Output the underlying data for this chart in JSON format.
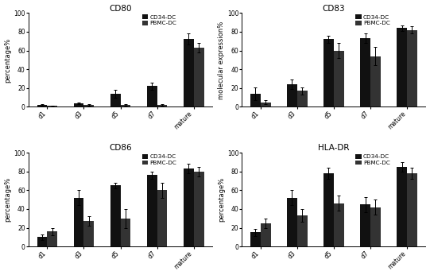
{
  "subplots": [
    {
      "title": "CD80",
      "ylabel": "percentage%",
      "categories": [
        "d1",
        "d3",
        "d5",
        "d7",
        "mature"
      ],
      "cd34_values": [
        2,
        4,
        14,
        22,
        72
      ],
      "cd34_errors": [
        1,
        1,
        4,
        4,
        6
      ],
      "pbmc_values": [
        1,
        2,
        2,
        2,
        63
      ],
      "pbmc_errors": [
        0.5,
        0.5,
        1,
        1,
        5
      ]
    },
    {
      "title": "CD83",
      "ylabel": "molecular expression%",
      "categories": [
        "d1",
        "d3",
        "d5",
        "d7",
        "mature"
      ],
      "cd34_values": [
        14,
        24,
        72,
        73,
        84
      ],
      "cd34_errors": [
        7,
        5,
        4,
        5,
        3
      ],
      "pbmc_values": [
        5,
        17,
        60,
        54,
        82
      ],
      "pbmc_errors": [
        2,
        4,
        8,
        10,
        4
      ]
    },
    {
      "title": "CD86",
      "ylabel": "percentage%",
      "categories": [
        "d1",
        "d3",
        "d5",
        "d7",
        "mature"
      ],
      "cd34_values": [
        10,
        52,
        65,
        76,
        83
      ],
      "cd34_errors": [
        3,
        8,
        3,
        4,
        5
      ],
      "pbmc_values": [
        16,
        27,
        30,
        60,
        80
      ],
      "pbmc_errors": [
        4,
        5,
        10,
        8,
        5
      ]
    },
    {
      "title": "HLA-DR",
      "ylabel": "percentage%",
      "categories": [
        "d1",
        "d3",
        "d5",
        "d7",
        "mature"
      ],
      "cd34_values": [
        15,
        52,
        78,
        45,
        85
      ],
      "cd34_errors": [
        4,
        8,
        6,
        8,
        5
      ],
      "pbmc_values": [
        25,
        33,
        46,
        42,
        78
      ],
      "pbmc_errors": [
        5,
        7,
        8,
        8,
        6
      ]
    }
  ],
  "bar_color_cd34": "#111111",
  "bar_color_pbmc": "#333333",
  "bar_width": 0.28,
  "ylim": [
    0,
    100
  ],
  "yticks": [
    0,
    20,
    40,
    60,
    80,
    100
  ],
  "legend_labels": [
    "CD34-DC",
    "PBMC-DC"
  ],
  "title_fontsize": 7.5,
  "label_fontsize": 6,
  "tick_fontsize": 5.5
}
